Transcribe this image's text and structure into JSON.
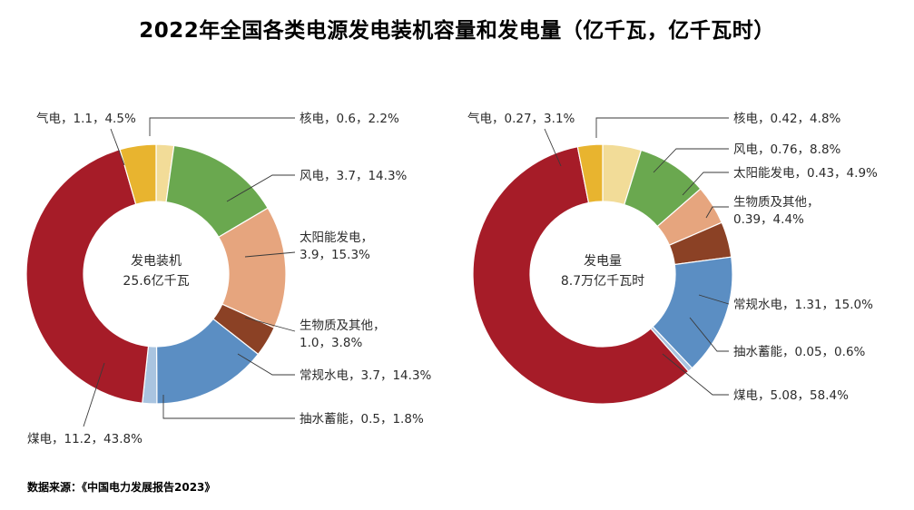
{
  "title": "2022年全国各类电源发电装机容量和发电量（亿千瓦，亿千瓦时）",
  "source": "数据来源：《中国电力发展报告2023》",
  "colors": {
    "coal": "#a61c28",
    "gas": "#e8b42f",
    "nuclear": "#f2dc98",
    "wind": "#6aa84f",
    "solar": "#e6a57e",
    "biomass": "#8b4125",
    "hydro": "#5b8ec3",
    "pumped": "#a9c4e0"
  },
  "chart_data": [
    {
      "type": "pie",
      "title": "发电装机",
      "center_label": [
        "发电装机",
        "25.6亿千瓦"
      ],
      "slices": [
        {
          "name": "核电",
          "value": 0.6,
          "pct": 2.2,
          "label": "核电，0.6，2.2%",
          "color": "#f2dc98"
        },
        {
          "name": "风电",
          "value": 3.7,
          "pct": 14.3,
          "label": "风电，3.7，14.3%",
          "color": "#6aa84f"
        },
        {
          "name": "太阳能发电",
          "value": 3.9,
          "pct": 15.3,
          "label": [
            "太阳能发电，",
            "3.9，15.3%"
          ],
          "color": "#e6a57e"
        },
        {
          "name": "生物质及其他",
          "value": 1.0,
          "pct": 3.8,
          "label": [
            "生物质及其他，",
            "1.0，3.8%"
          ],
          "color": "#8b4125"
        },
        {
          "name": "常规水电",
          "value": 3.7,
          "pct": 14.3,
          "label": "常规水电，3.7，14.3%",
          "color": "#5b8ec3"
        },
        {
          "name": "抽水蓄能",
          "value": 0.5,
          "pct": 1.8,
          "label": "抽水蓄能，0.5，1.8%",
          "color": "#a9c4e0"
        },
        {
          "name": "煤电",
          "value": 11.2,
          "pct": 43.8,
          "label": "煤电，11.2，43.8%",
          "color": "#a61c28"
        },
        {
          "name": "气电",
          "value": 1.1,
          "pct": 4.5,
          "label": "气电，1.1，4.5%",
          "color": "#e8b42f"
        }
      ]
    },
    {
      "type": "pie",
      "title": "发电量",
      "center_label": [
        "发电量",
        "8.7万亿千瓦时"
      ],
      "slices": [
        {
          "name": "核电",
          "value": 0.42,
          "pct": 4.8,
          "label": "核电，0.42，4.8%",
          "color": "#f2dc98"
        },
        {
          "name": "风电",
          "value": 0.76,
          "pct": 8.8,
          "label": "风电，0.76，8.8%",
          "color": "#6aa84f"
        },
        {
          "name": "太阳能发电",
          "value": 0.43,
          "pct": 4.9,
          "label": "太阳能发电，0.43，4.9%",
          "color": "#e6a57e"
        },
        {
          "name": "生物质及其他",
          "value": 0.39,
          "pct": 4.4,
          "label": [
            "生物质及其他，",
            "0.39，4.4%"
          ],
          "color": "#8b4125"
        },
        {
          "name": "常规水电",
          "value": 1.31,
          "pct": 15.0,
          "label": "常规水电，1.31，15.0%",
          "color": "#5b8ec3"
        },
        {
          "name": "抽水蓄能",
          "value": 0.05,
          "pct": 0.6,
          "label": "抽水蓄能，0.05，0.6%",
          "color": "#a9c4e0"
        },
        {
          "name": "煤电",
          "value": 5.08,
          "pct": 58.4,
          "label": "煤电，5.08，58.4%",
          "color": "#a61c28"
        },
        {
          "name": "气电",
          "value": 0.27,
          "pct": 3.1,
          "label": "气电，0.27，3.1%",
          "color": "#e8b42f"
        }
      ]
    }
  ]
}
